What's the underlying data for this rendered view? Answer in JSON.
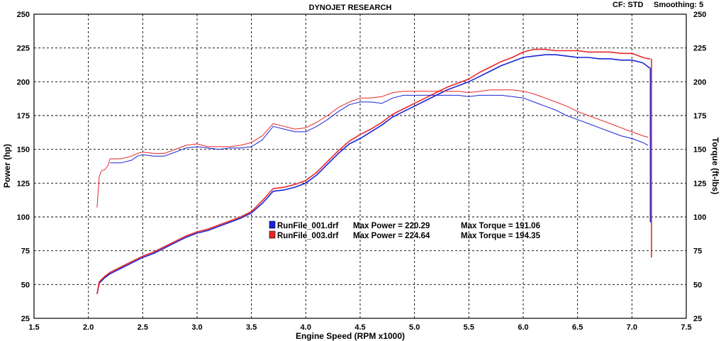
{
  "header": {
    "title": "DYNOJET RESEARCH",
    "cf": "CF: STD",
    "smoothing": "Smoothing: 5"
  },
  "chart_data": {
    "type": "line",
    "title": "DYNOJET RESEARCH",
    "xlabel": "Engine Speed (RPM x1000)",
    "ylabel_left": "Power (hp)",
    "ylabel_right": "Torque (ft-lbs)",
    "xlim": [
      1.5,
      7.5
    ],
    "ylim": [
      25,
      250
    ],
    "xticks": [
      "1.5",
      "2.0",
      "2.5",
      "3.0",
      "3.5",
      "4.0",
      "4.5",
      "5.0",
      "5.5",
      "6.0",
      "6.5",
      "7.0",
      "7.5"
    ],
    "yticks": [
      "25",
      "50",
      "75",
      "100",
      "125",
      "150",
      "175",
      "200",
      "225",
      "250"
    ],
    "grid": true,
    "legend_position": "center",
    "legend": [
      {
        "run": "RunFile_001.drf",
        "power_text": "Max Power = 220.29",
        "torque_text": "Max Torque = 191.06",
        "color": "#1a24d6"
      },
      {
        "run": "RunFile_003.drf",
        "power_text": "Max Power = 224.64",
        "torque_text": "Max Torque = 194.35",
        "color": "#e8262a"
      }
    ],
    "series": [
      {
        "run": "RunFile_001.drf",
        "measure": "power",
        "color": "#1a24d6",
        "x": [
          2.08,
          2.1,
          2.15,
          2.2,
          2.3,
          2.4,
          2.5,
          2.6,
          2.7,
          2.8,
          2.9,
          3.0,
          3.1,
          3.2,
          3.3,
          3.4,
          3.5,
          3.6,
          3.7,
          3.8,
          3.9,
          4.0,
          4.1,
          4.2,
          4.3,
          4.4,
          4.5,
          4.6,
          4.7,
          4.8,
          4.9,
          5.0,
          5.1,
          5.2,
          5.3,
          5.4,
          5.5,
          5.6,
          5.7,
          5.8,
          5.9,
          6.0,
          6.1,
          6.2,
          6.3,
          6.4,
          6.5,
          6.6,
          6.7,
          6.8,
          6.9,
          7.0,
          7.1,
          7.15,
          7.17
        ],
        "y": [
          43,
          51,
          55,
          58,
          62,
          66,
          70,
          73,
          77,
          81,
          85,
          88,
          90,
          93,
          96,
          99,
          103,
          110,
          119,
          120,
          122,
          125,
          131,
          139,
          147,
          154,
          158,
          163,
          168,
          174,
          178,
          182,
          186,
          190,
          194,
          197,
          200,
          204,
          208,
          212,
          215,
          218,
          219,
          220,
          220,
          219,
          218,
          218,
          217,
          217,
          216,
          216,
          214,
          211,
          210
        ]
      },
      {
        "run": "RunFile_003.drf",
        "measure": "power",
        "color": "#e8262a",
        "x": [
          2.08,
          2.1,
          2.15,
          2.2,
          2.3,
          2.4,
          2.5,
          2.6,
          2.7,
          2.8,
          2.9,
          3.0,
          3.1,
          3.2,
          3.3,
          3.4,
          3.5,
          3.6,
          3.7,
          3.8,
          3.9,
          4.0,
          4.1,
          4.2,
          4.3,
          4.4,
          4.5,
          4.6,
          4.7,
          4.8,
          4.9,
          5.0,
          5.1,
          5.2,
          5.3,
          5.4,
          5.5,
          5.6,
          5.7,
          5.8,
          5.9,
          6.0,
          6.1,
          6.2,
          6.3,
          6.4,
          6.5,
          6.6,
          6.7,
          6.8,
          6.9,
          7.0,
          7.1,
          7.15,
          7.17
        ],
        "y": [
          43,
          52,
          56,
          59,
          63,
          67,
          71,
          74,
          78,
          82,
          86,
          89,
          91,
          94,
          97,
          100,
          104,
          112,
          121,
          122,
          124,
          127,
          133,
          141,
          149,
          156,
          161,
          165,
          170,
          176,
          180,
          184,
          188,
          192,
          196,
          199,
          202,
          207,
          211,
          215,
          218,
          222,
          224,
          224,
          223,
          223,
          223,
          222,
          222,
          222,
          221,
          221,
          218,
          217,
          217
        ]
      },
      {
        "run": "RunFile_001.drf",
        "measure": "torque",
        "color": "#1a24d6",
        "x": [
          2.2,
          2.3,
          2.4,
          2.45,
          2.5,
          2.6,
          2.7,
          2.8,
          2.9,
          3.0,
          3.1,
          3.2,
          3.3,
          3.4,
          3.5,
          3.6,
          3.7,
          3.8,
          3.9,
          4.0,
          4.1,
          4.2,
          4.3,
          4.4,
          4.5,
          4.6,
          4.7,
          4.8,
          4.9,
          5.0,
          5.1,
          5.2,
          5.3,
          5.4,
          5.5,
          5.6,
          5.7,
          5.8,
          5.9,
          6.0,
          6.1,
          6.2,
          6.3,
          6.4,
          6.5,
          6.6,
          6.7,
          6.8,
          6.9,
          7.0,
          7.1,
          7.15
        ],
        "y": [
          140,
          140,
          142,
          145,
          146,
          145,
          145,
          148,
          151,
          152,
          151,
          150,
          151,
          151,
          152,
          157,
          167,
          165,
          163,
          163,
          167,
          172,
          178,
          183,
          185,
          185,
          184,
          188,
          190,
          190,
          190,
          190,
          190,
          190,
          189,
          190,
          190,
          190,
          189,
          188,
          185,
          182,
          179,
          175,
          172,
          169,
          166,
          163,
          160,
          158,
          155,
          153
        ]
      },
      {
        "run": "RunFile_003.drf",
        "measure": "torque",
        "color": "#e8262a",
        "x": [
          2.08,
          2.1,
          2.12,
          2.15,
          2.18,
          2.2,
          2.3,
          2.4,
          2.45,
          2.5,
          2.6,
          2.7,
          2.8,
          2.9,
          3.0,
          3.1,
          3.2,
          3.3,
          3.4,
          3.5,
          3.6,
          3.7,
          3.8,
          3.9,
          4.0,
          4.1,
          4.2,
          4.3,
          4.4,
          4.5,
          4.6,
          4.7,
          4.8,
          4.9,
          5.0,
          5.1,
          5.2,
          5.3,
          5.4,
          5.5,
          5.6,
          5.7,
          5.8,
          5.9,
          6.0,
          6.1,
          6.2,
          6.3,
          6.4,
          6.5,
          6.6,
          6.7,
          6.8,
          6.9,
          7.0,
          7.1,
          7.15
        ],
        "y": [
          107,
          130,
          134,
          135,
          138,
          143,
          143,
          145,
          147,
          148,
          147,
          147,
          150,
          153,
          154,
          152,
          152,
          152,
          153,
          155,
          160,
          169,
          167,
          165,
          166,
          170,
          175,
          181,
          185,
          188,
          188,
          189,
          192,
          193,
          193,
          193,
          193,
          193,
          193,
          192,
          193,
          194,
          194,
          194,
          193,
          191,
          188,
          185,
          182,
          178,
          175,
          172,
          169,
          166,
          163,
          160,
          159
        ]
      }
    ]
  }
}
